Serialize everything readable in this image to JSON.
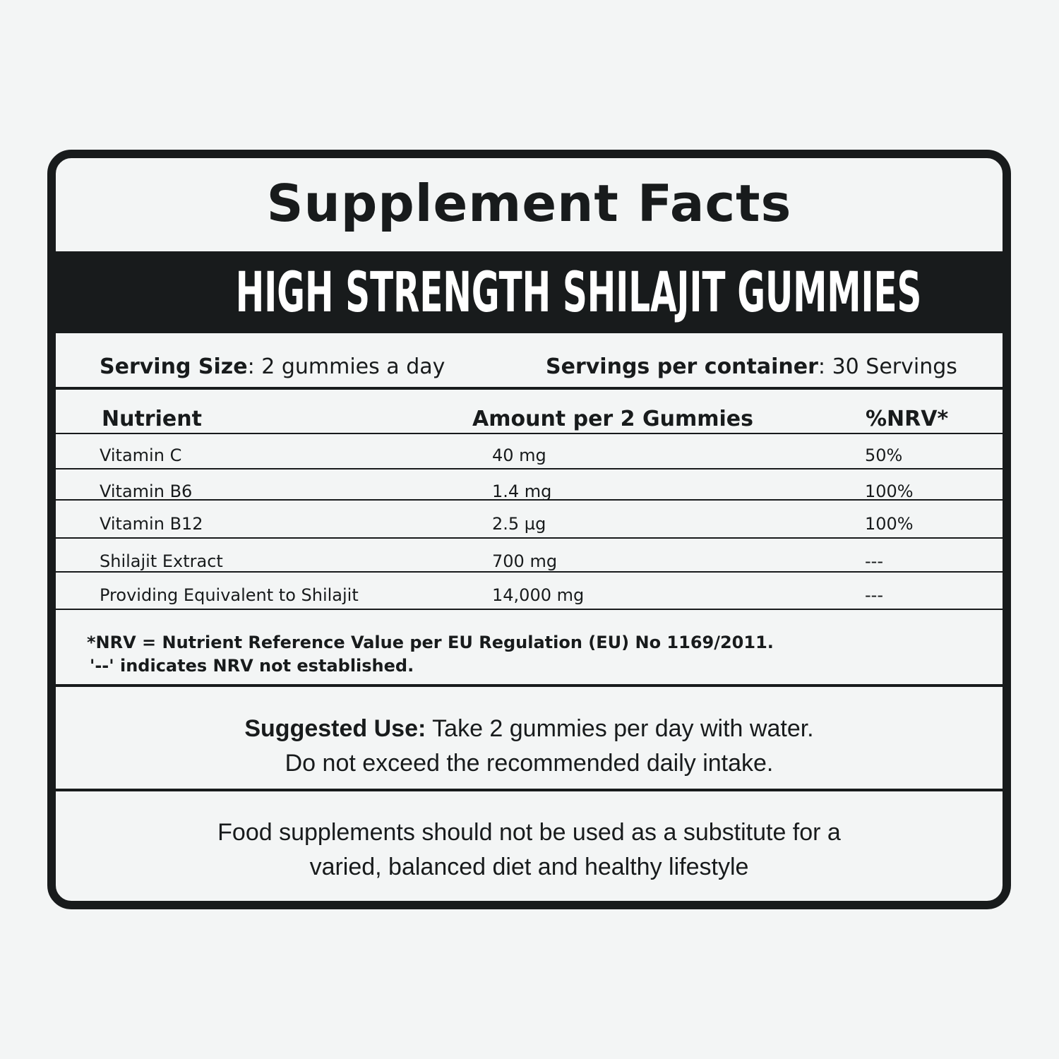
{
  "title": "Supplement Facts",
  "product_name": "HIGH STRENGTH SHILAJIT GUMMIES",
  "serving": {
    "size_label": "Serving Size",
    "size_value": "2 gummies a day",
    "per_container_label": "Servings per container",
    "per_container_value": "30 Servings"
  },
  "table": {
    "headers": [
      "Nutrient",
      "Amount per 2 Gummies",
      "%NRV*"
    ],
    "rows": [
      [
        "Vitamin C",
        "40 mg",
        "50%"
      ],
      [
        "Vitamin B6",
        "1.4 mg",
        "100%"
      ],
      [
        "Vitamin B12",
        "2.5 µg",
        "100%"
      ],
      [
        "Shilajit Extract",
        "700 mg",
        "---"
      ],
      [
        "Providing Equivalent to Shilajit",
        "14,000 mg",
        "---"
      ]
    ]
  },
  "footnotes": [
    "*NRV = Nutrient Reference Value per EU Regulation (EU) No 1169/2011.",
    "'--' indicates NRV not established."
  ],
  "suggested_use": {
    "label": "Suggested Use:",
    "line1": "Take 2 gummies per day with water.",
    "line2": "Do not exceed the recommended daily intake."
  },
  "disclaimer": {
    "line1": "Food supplements should not be used as a substitute for a",
    "line2": "varied, balanced diet and healthy lifestyle"
  }
}
